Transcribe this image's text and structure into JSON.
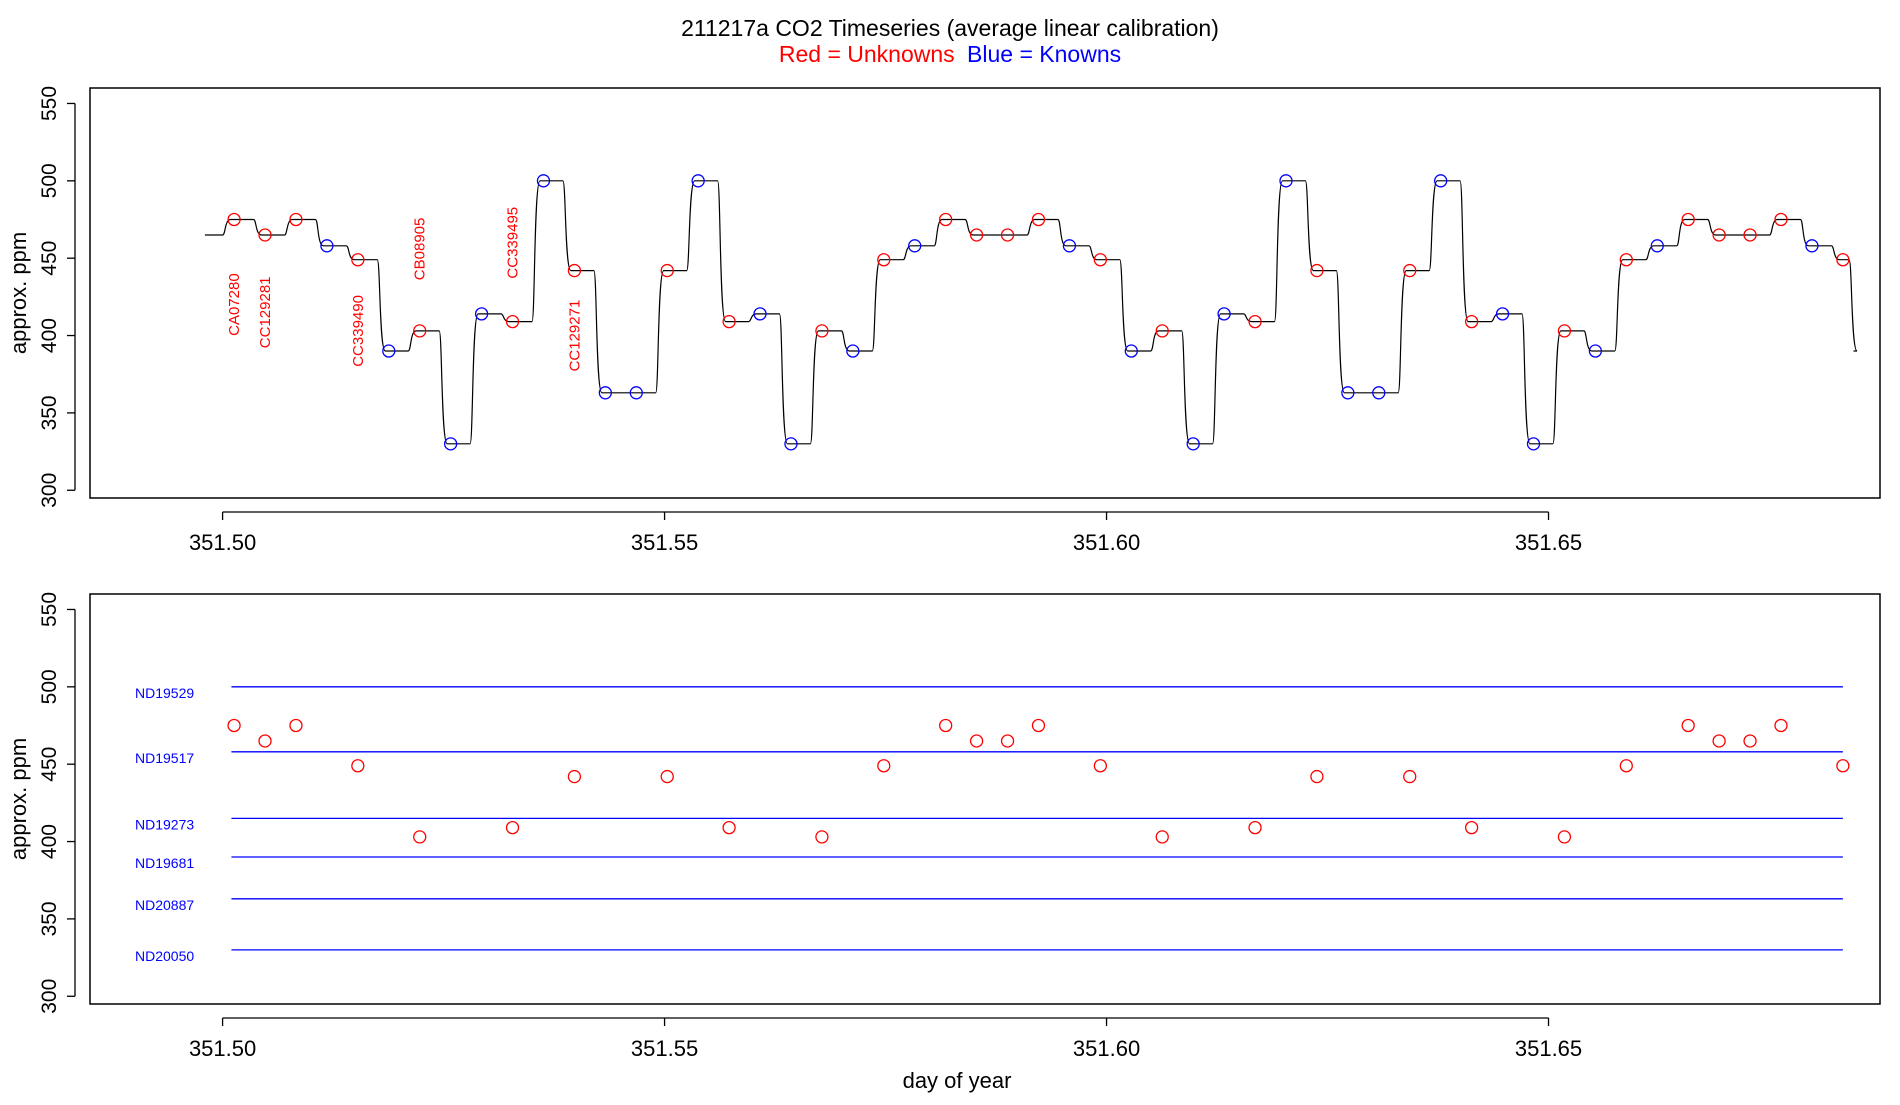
{
  "title": "211217a   CO2 Timeseries (average linear calibration)",
  "subtitle": {
    "red_text": "Red = Unknowns",
    "blue_text": "Blue = Knowns"
  },
  "colors": {
    "unknown": "#ff0000",
    "known": "#0000ff",
    "trace": "#000000",
    "axis": "#000000"
  },
  "chart_data": [
    {
      "type": "line",
      "panel": "top",
      "ylabel": "approx. ppm",
      "xlabel": "",
      "xlim": [
        351.485,
        351.6875
      ],
      "ylim": [
        295,
        560
      ],
      "x_ticks": [
        "351.50",
        "351.55",
        "351.60",
        "351.65"
      ],
      "y_ticks": [
        "300",
        "350",
        "400",
        "450",
        "500",
        "550"
      ],
      "trace_segments": [
        {
          "start": 351.498,
          "end": 351.5,
          "value": 465
        },
        {
          "start": 351.5,
          "end": 351.5035,
          "value": 475
        },
        {
          "start": 351.5035,
          "end": 351.507,
          "value": 465
        },
        {
          "start": 351.507,
          "end": 351.5105,
          "value": 475
        },
        {
          "start": 351.5105,
          "end": 351.514,
          "value": 458
        },
        {
          "start": 351.514,
          "end": 351.5175,
          "value": 449
        },
        {
          "start": 351.5175,
          "end": 351.521,
          "value": 390
        },
        {
          "start": 351.521,
          "end": 351.5245,
          "value": 403
        },
        {
          "start": 351.5245,
          "end": 351.528,
          "value": 330
        },
        {
          "start": 351.528,
          "end": 351.5315,
          "value": 414
        },
        {
          "start": 351.5315,
          "end": 351.535,
          "value": 409
        },
        {
          "start": 351.535,
          "end": 351.5385,
          "value": 500
        },
        {
          "start": 351.5385,
          "end": 351.542,
          "value": 442
        },
        {
          "start": 351.542,
          "end": 351.549,
          "value": 363
        },
        {
          "start": 351.549,
          "end": 351.5525,
          "value": 442
        },
        {
          "start": 351.5525,
          "end": 351.556,
          "value": 500
        },
        {
          "start": 351.556,
          "end": 351.5595,
          "value": 409
        },
        {
          "start": 351.5595,
          "end": 351.563,
          "value": 414
        },
        {
          "start": 351.563,
          "end": 351.5665,
          "value": 330
        },
        {
          "start": 351.5665,
          "end": 351.57,
          "value": 403
        },
        {
          "start": 351.57,
          "end": 351.5735,
          "value": 390
        },
        {
          "start": 351.5735,
          "end": 351.577,
          "value": 449
        },
        {
          "start": 351.577,
          "end": 351.5805,
          "value": 458
        },
        {
          "start": 351.5805,
          "end": 351.584,
          "value": 475
        },
        {
          "start": 351.584,
          "end": 351.591,
          "value": 465
        },
        {
          "start": 351.591,
          "end": 351.5945,
          "value": 475
        },
        {
          "start": 351.5945,
          "end": 351.598,
          "value": 458
        },
        {
          "start": 351.598,
          "end": 351.6015,
          "value": 449
        },
        {
          "start": 351.6015,
          "end": 351.605,
          "value": 390
        },
        {
          "start": 351.605,
          "end": 351.6085,
          "value": 403
        },
        {
          "start": 351.6085,
          "end": 351.612,
          "value": 330
        },
        {
          "start": 351.612,
          "end": 351.6155,
          "value": 414
        },
        {
          "start": 351.6155,
          "end": 351.619,
          "value": 409
        },
        {
          "start": 351.619,
          "end": 351.6225,
          "value": 500
        },
        {
          "start": 351.6225,
          "end": 351.626,
          "value": 442
        },
        {
          "start": 351.626,
          "end": 351.633,
          "value": 363
        },
        {
          "start": 351.633,
          "end": 351.6365,
          "value": 442
        },
        {
          "start": 351.6365,
          "end": 351.64,
          "value": 500
        },
        {
          "start": 351.64,
          "end": 351.6435,
          "value": 409
        },
        {
          "start": 351.6435,
          "end": 351.647,
          "value": 414
        },
        {
          "start": 351.647,
          "end": 351.6505,
          "value": 330
        },
        {
          "start": 351.6505,
          "end": 351.654,
          "value": 403
        },
        {
          "start": 351.654,
          "end": 351.6575,
          "value": 390
        },
        {
          "start": 351.6575,
          "end": 351.661,
          "value": 449
        },
        {
          "start": 351.661,
          "end": 351.6645,
          "value": 458
        },
        {
          "start": 351.6645,
          "end": 351.668,
          "value": 475
        },
        {
          "start": 351.668,
          "end": 351.675,
          "value": 465
        },
        {
          "start": 351.675,
          "end": 351.6785,
          "value": 475
        },
        {
          "start": 351.6785,
          "end": 351.682,
          "value": 458
        },
        {
          "start": 351.682,
          "end": 351.684,
          "value": 449
        },
        {
          "start": 351.684,
          "end": 351.6845,
          "value": 390
        }
      ],
      "points": [
        {
          "x": 351.5013,
          "y": 475,
          "kind": "unknown"
        },
        {
          "x": 351.5048,
          "y": 465,
          "kind": "unknown"
        },
        {
          "x": 351.5083,
          "y": 475,
          "kind": "unknown"
        },
        {
          "x": 351.5118,
          "y": 458,
          "kind": "known"
        },
        {
          "x": 351.5153,
          "y": 449,
          "kind": "unknown"
        },
        {
          "x": 351.5188,
          "y": 390,
          "kind": "known"
        },
        {
          "x": 351.5223,
          "y": 403,
          "kind": "unknown"
        },
        {
          "x": 351.5258,
          "y": 330,
          "kind": "known"
        },
        {
          "x": 351.5293,
          "y": 414,
          "kind": "known"
        },
        {
          "x": 351.5328,
          "y": 409,
          "kind": "unknown"
        },
        {
          "x": 351.5363,
          "y": 500,
          "kind": "known"
        },
        {
          "x": 351.5398,
          "y": 442,
          "kind": "unknown"
        },
        {
          "x": 351.5433,
          "y": 363,
          "kind": "known"
        },
        {
          "x": 351.5468,
          "y": 363,
          "kind": "known"
        },
        {
          "x": 351.5503,
          "y": 442,
          "kind": "unknown"
        },
        {
          "x": 351.5538,
          "y": 500,
          "kind": "known"
        },
        {
          "x": 351.5573,
          "y": 409,
          "kind": "unknown"
        },
        {
          "x": 351.5608,
          "y": 414,
          "kind": "known"
        },
        {
          "x": 351.5643,
          "y": 330,
          "kind": "known"
        },
        {
          "x": 351.5678,
          "y": 403,
          "kind": "unknown"
        },
        {
          "x": 351.5713,
          "y": 390,
          "kind": "known"
        },
        {
          "x": 351.5748,
          "y": 449,
          "kind": "unknown"
        },
        {
          "x": 351.5783,
          "y": 458,
          "kind": "known"
        },
        {
          "x": 351.5818,
          "y": 475,
          "kind": "unknown"
        },
        {
          "x": 351.5853,
          "y": 465,
          "kind": "unknown"
        },
        {
          "x": 351.5888,
          "y": 465,
          "kind": "unknown"
        },
        {
          "x": 351.5923,
          "y": 475,
          "kind": "unknown"
        },
        {
          "x": 351.5958,
          "y": 458,
          "kind": "known"
        },
        {
          "x": 351.5993,
          "y": 449,
          "kind": "unknown"
        },
        {
          "x": 351.6028,
          "y": 390,
          "kind": "known"
        },
        {
          "x": 351.6063,
          "y": 403,
          "kind": "unknown"
        },
        {
          "x": 351.6098,
          "y": 330,
          "kind": "known"
        },
        {
          "x": 351.6133,
          "y": 414,
          "kind": "known"
        },
        {
          "x": 351.6168,
          "y": 409,
          "kind": "unknown"
        },
        {
          "x": 351.6203,
          "y": 500,
          "kind": "known"
        },
        {
          "x": 351.6238,
          "y": 442,
          "kind": "unknown"
        },
        {
          "x": 351.6273,
          "y": 363,
          "kind": "known"
        },
        {
          "x": 351.6308,
          "y": 363,
          "kind": "known"
        },
        {
          "x": 351.6343,
          "y": 442,
          "kind": "unknown"
        },
        {
          "x": 351.6378,
          "y": 500,
          "kind": "known"
        },
        {
          "x": 351.6413,
          "y": 409,
          "kind": "unknown"
        },
        {
          "x": 351.6448,
          "y": 414,
          "kind": "known"
        },
        {
          "x": 351.6483,
          "y": 330,
          "kind": "known"
        },
        {
          "x": 351.6518,
          "y": 403,
          "kind": "unknown"
        },
        {
          "x": 351.6553,
          "y": 390,
          "kind": "known"
        },
        {
          "x": 351.6588,
          "y": 449,
          "kind": "unknown"
        },
        {
          "x": 351.6623,
          "y": 458,
          "kind": "known"
        },
        {
          "x": 351.6658,
          "y": 475,
          "kind": "unknown"
        },
        {
          "x": 351.6693,
          "y": 465,
          "kind": "unknown"
        },
        {
          "x": 351.6728,
          "y": 465,
          "kind": "unknown"
        },
        {
          "x": 351.6763,
          "y": 475,
          "kind": "unknown"
        },
        {
          "x": 351.6798,
          "y": 458,
          "kind": "known"
        },
        {
          "x": 351.6833,
          "y": 449,
          "kind": "unknown"
        }
      ],
      "annotations": [
        {
          "text": "CA07280",
          "x": 351.5013,
          "y": 420
        },
        {
          "text": "CC129281",
          "x": 351.5048,
          "y": 415
        },
        {
          "text": "CC339490",
          "x": 351.5153,
          "y": 403
        },
        {
          "text": "CB08905",
          "x": 351.5223,
          "y": 456
        },
        {
          "text": "CC339495",
          "x": 351.5328,
          "y": 460
        },
        {
          "text": "CC129271",
          "x": 351.5398,
          "y": 400
        }
      ]
    },
    {
      "type": "scatter",
      "panel": "bottom",
      "ylabel": "approx. ppm",
      "xlabel": "day of year",
      "xlim": [
        351.485,
        351.6875
      ],
      "ylim": [
        295,
        560
      ],
      "x_ticks": [
        "351.50",
        "351.55",
        "351.60",
        "351.65"
      ],
      "y_ticks": [
        "300",
        "350",
        "400",
        "450",
        "500",
        "550"
      ],
      "standards": [
        {
          "name": "ND19529",
          "value": 500
        },
        {
          "name": "ND19517",
          "value": 458
        },
        {
          "name": "ND19273",
          "value": 415
        },
        {
          "name": "ND19681",
          "value": 390
        },
        {
          "name": "ND20887",
          "value": 363
        },
        {
          "name": "ND20050",
          "value": 330
        }
      ],
      "standards_x_range": [
        351.501,
        351.6833
      ],
      "points": [
        {
          "x": 351.5013,
          "y": 475
        },
        {
          "x": 351.5048,
          "y": 465
        },
        {
          "x": 351.5083,
          "y": 475
        },
        {
          "x": 351.5153,
          "y": 449
        },
        {
          "x": 351.5223,
          "y": 403
        },
        {
          "x": 351.5328,
          "y": 409
        },
        {
          "x": 351.5398,
          "y": 442
        },
        {
          "x": 351.5503,
          "y": 442
        },
        {
          "x": 351.5573,
          "y": 409
        },
        {
          "x": 351.5678,
          "y": 403
        },
        {
          "x": 351.5748,
          "y": 449
        },
        {
          "x": 351.5818,
          "y": 475
        },
        {
          "x": 351.5853,
          "y": 465
        },
        {
          "x": 351.5888,
          "y": 465
        },
        {
          "x": 351.5923,
          "y": 475
        },
        {
          "x": 351.5993,
          "y": 449
        },
        {
          "x": 351.6063,
          "y": 403
        },
        {
          "x": 351.6168,
          "y": 409
        },
        {
          "x": 351.6238,
          "y": 442
        },
        {
          "x": 351.6343,
          "y": 442
        },
        {
          "x": 351.6413,
          "y": 409
        },
        {
          "x": 351.6518,
          "y": 403
        },
        {
          "x": 351.6588,
          "y": 449
        },
        {
          "x": 351.6658,
          "y": 475
        },
        {
          "x": 351.6693,
          "y": 465
        },
        {
          "x": 351.6728,
          "y": 465
        },
        {
          "x": 351.6763,
          "y": 475
        },
        {
          "x": 351.6833,
          "y": 449
        }
      ]
    }
  ]
}
